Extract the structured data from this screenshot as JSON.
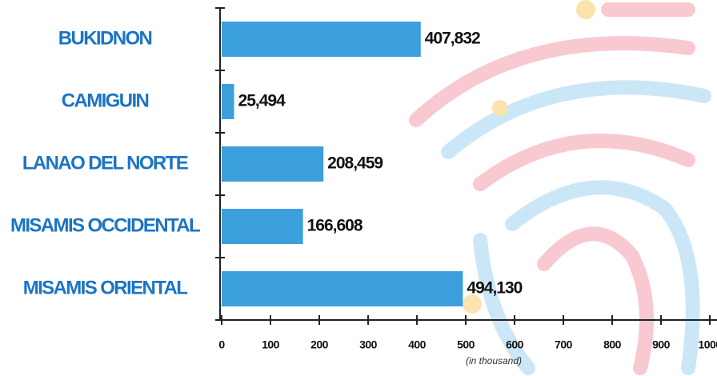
{
  "chart_data": {
    "type": "bar",
    "orientation": "horizontal",
    "categories": [
      "BUKIDNON",
      "CAMIGUIN",
      "LANAO DEL NORTE",
      "MISAMIS OCCIDENTAL",
      "MISAMIS ORIENTAL"
    ],
    "values": [
      407.832,
      25.494,
      208.459,
      166.608,
      494.13
    ],
    "value_labels": [
      "407,832",
      "25,494",
      "208,459",
      "166,608",
      "494,130"
    ],
    "color": "#3a9fdb",
    "x_label": "(in thousand)",
    "xlim": [
      0,
      1000
    ],
    "xticks": [
      0,
      100,
      200,
      300,
      400,
      500,
      600,
      700,
      800,
      900,
      1000
    ]
  }
}
